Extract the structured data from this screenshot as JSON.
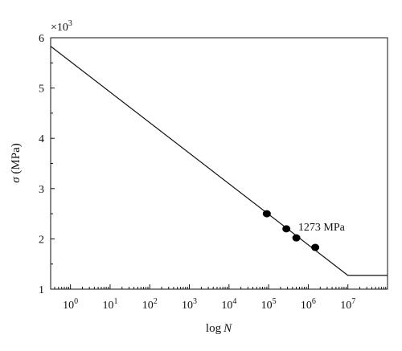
{
  "chart_data": {
    "type": "scatter",
    "x_scale": "log",
    "xlim_log10": [
      -0.5,
      8.0
    ],
    "ylim": [
      1000,
      6000
    ],
    "y_multiplier_label": "×10",
    "y_multiplier_exponent": "3",
    "x_ticks": [
      {
        "base": "10",
        "exp": "0"
      },
      {
        "base": "10",
        "exp": "1"
      },
      {
        "base": "10",
        "exp": "2"
      },
      {
        "base": "10",
        "exp": "3"
      },
      {
        "base": "10",
        "exp": "4"
      },
      {
        "base": "10",
        "exp": "5"
      },
      {
        "base": "10",
        "exp": "6"
      },
      {
        "base": "10",
        "exp": "7"
      }
    ],
    "y_ticks": [
      "1",
      "2",
      "3",
      "4",
      "5",
      "6"
    ],
    "y_tick_values": [
      1000,
      2000,
      3000,
      4000,
      5000,
      6000
    ],
    "xlabel": {
      "prefix": "log",
      "var": "N"
    },
    "ylabel": {
      "sym": "σ",
      "unit": " (MPa)"
    },
    "line": {
      "points": [
        [
          -0.5,
          5830
        ],
        [
          7.0,
          1273
        ],
        [
          8.0,
          1273
        ]
      ]
    },
    "points": [
      {
        "x": 90000,
        "y": 2500
      },
      {
        "x": 280000,
        "y": 2200
      },
      {
        "x": 500000,
        "y": 2020
      },
      {
        "x": 1500000,
        "y": 1830
      }
    ],
    "annotation": {
      "text": "1273 MPa",
      "x": 350000,
      "y": 2250
    }
  }
}
